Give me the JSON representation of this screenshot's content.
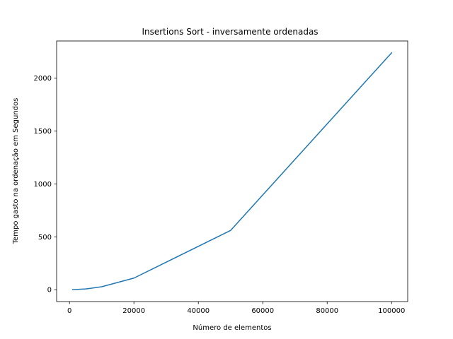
{
  "chart_data": {
    "type": "line",
    "title": "Insertions Sort - inversamente ordenadas",
    "xlabel": "Número de elementos",
    "ylabel": "Tempo gasto na ordenação em Segundos",
    "xlim": [
      -4000,
      105000
    ],
    "ylim": [
      -112,
      2352
    ],
    "xticks": [
      0,
      20000,
      40000,
      60000,
      80000,
      100000
    ],
    "yticks": [
      0,
      500,
      1000,
      1500,
      2000
    ],
    "grid": false,
    "series": [
      {
        "color": "#1f77b4",
        "x": [
          1000,
          5000,
          10000,
          20000,
          50000,
          100000
        ],
        "y": [
          1,
          7,
          28,
          110,
          560,
          2240
        ]
      }
    ]
  }
}
